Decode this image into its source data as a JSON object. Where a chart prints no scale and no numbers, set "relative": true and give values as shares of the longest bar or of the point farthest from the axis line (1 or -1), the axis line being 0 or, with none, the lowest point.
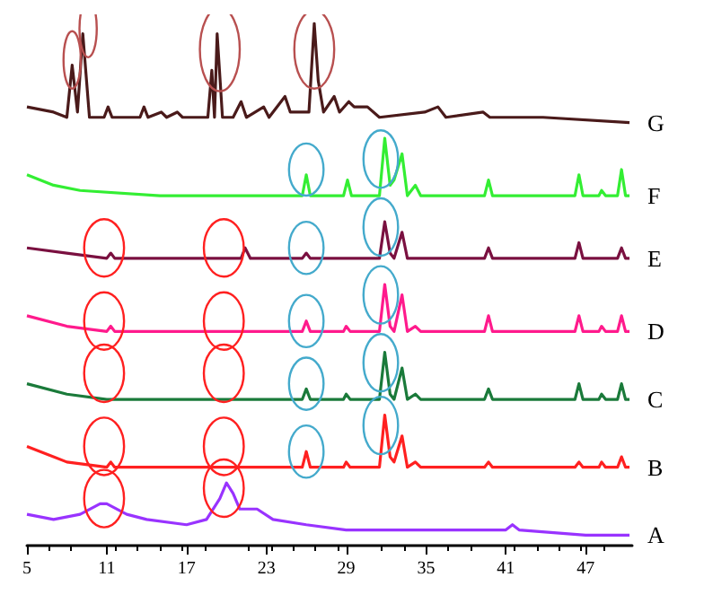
{
  "chart_data": {
    "type": "line",
    "relative": true,
    "xlim": [
      5,
      50.5
    ],
    "xticks": [
      5,
      11,
      17,
      23,
      29,
      35,
      41,
      47
    ],
    "grid": false,
    "legend": false,
    "marker": "none",
    "line_style": "solid",
    "tick_labels": "x",
    "series": [
      {
        "name": "G",
        "color": "#4a1a1a",
        "x": [
          5,
          7,
          8,
          8.4,
          8.8,
          9.2,
          9.7,
          10.8,
          11.1,
          11.4,
          13.5,
          13.8,
          14.1,
          15.1,
          15.5,
          16.3,
          16.7,
          18.6,
          18.9,
          19.1,
          19.3,
          19.7,
          20.5,
          21.1,
          21.5,
          22.8,
          23.2,
          24.4,
          24.8,
          26.2,
          26.6,
          26.9,
          27.3,
          28.1,
          28.5,
          29.2,
          29.6,
          30.6,
          31.5,
          34.9,
          35.9,
          36.5,
          39.3,
          39.8,
          41.8,
          43.8,
          50.3
        ],
        "values": [
          0.84,
          0.83,
          0.82,
          0.92,
          0.83,
          0.98,
          0.82,
          0.82,
          0.84,
          0.82,
          0.82,
          0.84,
          0.82,
          0.83,
          0.82,
          0.83,
          0.82,
          0.82,
          0.91,
          0.82,
          0.98,
          0.82,
          0.82,
          0.85,
          0.82,
          0.84,
          0.82,
          0.86,
          0.83,
          0.83,
          1.0,
          0.89,
          0.83,
          0.86,
          0.83,
          0.85,
          0.84,
          0.84,
          0.82,
          0.83,
          0.84,
          0.82,
          0.83,
          0.82,
          0.82,
          0.82,
          0.81
        ]
      },
      {
        "name": "F",
        "color": "#33ee33",
        "x": [
          5,
          7,
          9,
          15,
          25.7,
          26,
          26.3,
          28.8,
          29.1,
          29.4,
          31.5,
          31.9,
          32.3,
          32.6,
          33.2,
          33.6,
          34.2,
          34.6,
          39.4,
          39.7,
          40,
          46.2,
          46.5,
          46.8,
          48,
          48.2,
          48.5,
          49.4,
          49.7,
          50,
          50.3
        ],
        "values": [
          0.71,
          0.69,
          0.68,
          0.67,
          0.67,
          0.71,
          0.67,
          0.67,
          0.7,
          0.67,
          0.67,
          0.78,
          0.69,
          0.7,
          0.75,
          0.67,
          0.69,
          0.67,
          0.67,
          0.7,
          0.67,
          0.67,
          0.71,
          0.67,
          0.67,
          0.68,
          0.67,
          0.67,
          0.72,
          0.67,
          0.67
        ]
      },
      {
        "name": "E",
        "color": "#7a1040",
        "x": [
          5,
          8,
          11,
          11.3,
          11.6,
          21.1,
          21.4,
          21.8,
          25.7,
          26,
          26.3,
          31.5,
          31.9,
          32.3,
          32.6,
          33.2,
          33.6,
          39.4,
          39.7,
          40,
          46.2,
          46.5,
          46.8,
          49.4,
          49.7,
          50,
          50.3
        ],
        "values": [
          0.57,
          0.56,
          0.55,
          0.56,
          0.55,
          0.55,
          0.57,
          0.55,
          0.55,
          0.56,
          0.55,
          0.55,
          0.62,
          0.56,
          0.55,
          0.6,
          0.55,
          0.55,
          0.57,
          0.55,
          0.55,
          0.58,
          0.55,
          0.55,
          0.57,
          0.55,
          0.55
        ]
      },
      {
        "name": "D",
        "color": "#ff1a8c",
        "x": [
          5,
          8,
          11,
          11.3,
          11.6,
          25.7,
          26,
          26.3,
          28.8,
          29,
          29.3,
          31.5,
          31.9,
          32.3,
          32.6,
          33.2,
          33.6,
          34.2,
          34.6,
          39.4,
          39.7,
          40,
          46.2,
          46.5,
          46.8,
          48,
          48.2,
          48.5,
          49.4,
          49.7,
          50,
          50.3
        ],
        "values": [
          0.44,
          0.42,
          0.41,
          0.42,
          0.41,
          0.41,
          0.43,
          0.41,
          0.41,
          0.42,
          0.41,
          0.41,
          0.5,
          0.42,
          0.41,
          0.48,
          0.41,
          0.42,
          0.41,
          0.41,
          0.44,
          0.41,
          0.41,
          0.44,
          0.41,
          0.41,
          0.42,
          0.41,
          0.41,
          0.44,
          0.41,
          0.41
        ]
      },
      {
        "name": "C",
        "color": "#1a7a3a",
        "x": [
          5,
          8,
          11,
          25.7,
          26,
          26.3,
          28.8,
          29,
          29.3,
          31.5,
          31.9,
          32.3,
          32.6,
          33.2,
          33.6,
          34.2,
          34.6,
          39.4,
          39.7,
          40,
          46.2,
          46.5,
          46.8,
          48,
          48.2,
          48.5,
          49.4,
          49.7,
          50,
          50.3
        ],
        "values": [
          0.31,
          0.29,
          0.28,
          0.28,
          0.3,
          0.28,
          0.28,
          0.29,
          0.28,
          0.28,
          0.37,
          0.29,
          0.28,
          0.34,
          0.28,
          0.29,
          0.28,
          0.28,
          0.3,
          0.28,
          0.28,
          0.31,
          0.28,
          0.28,
          0.29,
          0.28,
          0.28,
          0.31,
          0.28,
          0.28
        ]
      },
      {
        "name": "B",
        "color": "#ff2020",
        "x": [
          5,
          8,
          11,
          11.3,
          11.6,
          25.7,
          26,
          26.3,
          28.8,
          29,
          29.3,
          31.5,
          31.9,
          32.3,
          32.6,
          33.2,
          33.6,
          34.2,
          34.6,
          39.4,
          39.7,
          40,
          46.2,
          46.5,
          46.8,
          48,
          48.2,
          48.5,
          49.4,
          49.7,
          50,
          50.3
        ],
        "values": [
          0.19,
          0.16,
          0.15,
          0.16,
          0.15,
          0.15,
          0.18,
          0.15,
          0.15,
          0.16,
          0.15,
          0.15,
          0.25,
          0.17,
          0.16,
          0.21,
          0.15,
          0.16,
          0.15,
          0.15,
          0.16,
          0.15,
          0.15,
          0.16,
          0.15,
          0.15,
          0.16,
          0.15,
          0.15,
          0.17,
          0.15,
          0.15
        ]
      },
      {
        "name": "A",
        "color": "#9933ff",
        "x": [
          5,
          7,
          9,
          10.5,
          11,
          12.5,
          14,
          17,
          18.5,
          19.5,
          20,
          20.5,
          21,
          21.8,
          22.3,
          23.5,
          26,
          29,
          35,
          41,
          41.5,
          42,
          47,
          50.3
        ],
        "values": [
          0.06,
          0.05,
          0.06,
          0.08,
          0.08,
          0.06,
          0.05,
          0.04,
          0.05,
          0.09,
          0.12,
          0.1,
          0.07,
          0.07,
          0.07,
          0.05,
          0.04,
          0.03,
          0.03,
          0.03,
          0.04,
          0.03,
          0.02,
          0.02
        ]
      }
    ]
  }
}
